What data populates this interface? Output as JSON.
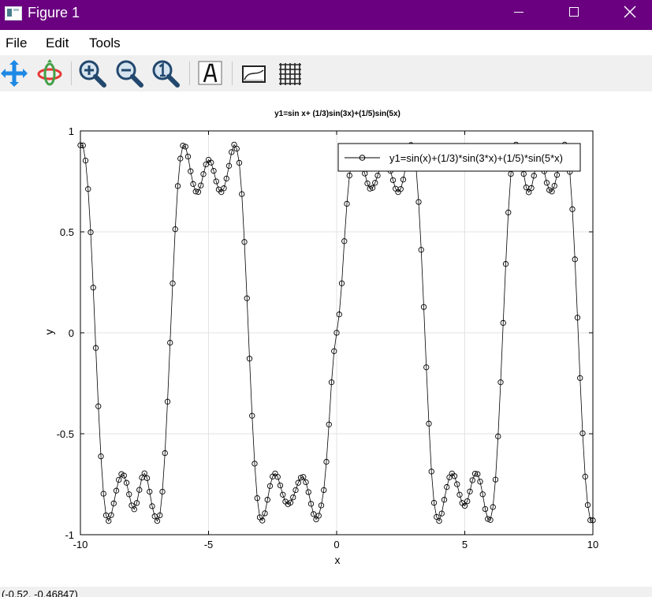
{
  "window": {
    "title": "Figure 1",
    "icon": "figure-app-icon",
    "controls": {
      "minimize_icon": "minimize-icon",
      "maximize_icon": "maximize-icon",
      "close_icon": "close-icon"
    }
  },
  "menu": {
    "items": [
      "File",
      "Edit",
      "Tools"
    ]
  },
  "toolbar": {
    "tools": [
      {
        "name": "pan-tool",
        "icon": "pan-arrows-icon"
      },
      {
        "name": "rotate-tool",
        "icon": "rotate-icon"
      },
      {
        "name": "zoom-in-tool",
        "icon": "zoom-in-icon"
      },
      {
        "name": "zoom-out-tool",
        "icon": "zoom-out-icon"
      },
      {
        "name": "zoom-reset-tool",
        "icon": "zoom-one-to-one-icon"
      },
      {
        "name": "text-tool",
        "icon": "text-a-icon"
      },
      {
        "name": "axes-tool",
        "icon": "axes-box-icon"
      },
      {
        "name": "grid-tool",
        "icon": "grid-icon"
      }
    ]
  },
  "chart_data": {
    "type": "line",
    "title": "y1=sin x+ (1/3)sin(3x)+(1/5)sin(5x)",
    "xlabel": "x",
    "ylabel": "y",
    "xlim": [
      -10,
      10
    ],
    "ylim": [
      -1,
      1
    ],
    "xticks": [
      -10,
      -5,
      0,
      5,
      10
    ],
    "xtick_labels": [
      "-10",
      "-5",
      "0",
      "5",
      "10"
    ],
    "yticks": [
      -1,
      -0.5,
      0,
      0.5,
      1
    ],
    "ytick_labels": [
      "-1",
      "-0.5",
      "0",
      "0.5",
      "1"
    ],
    "grid": true,
    "legend_position": "top-right",
    "series": [
      {
        "name": "y1=sin(x)+(1/3)*sin(3*x)+(1/5)*sin(5*x)",
        "color": "#000000",
        "marker": "circle",
        "x": [
          -10.0,
          -9.9,
          -9.8,
          -9.7,
          -9.6,
          -9.5,
          -9.4,
          -9.3,
          -9.2,
          -9.1,
          -9.0,
          -8.9,
          -8.8,
          -8.7,
          -8.6,
          -8.5,
          -8.4,
          -8.3,
          -8.2,
          -8.1,
          -8.0,
          -7.9,
          -7.8,
          -7.7,
          -7.6,
          -7.5,
          -7.4,
          -7.3,
          -7.2,
          -7.1,
          -7.0,
          -6.9,
          -6.8,
          -6.7,
          -6.6,
          -6.5,
          -6.4,
          -6.3,
          -6.2,
          -6.1,
          -6.0,
          -5.9,
          -5.8,
          -5.7,
          -5.6,
          -5.5,
          -5.4,
          -5.3,
          -5.2,
          -5.1,
          -5.0,
          -4.9,
          -4.8,
          -4.7,
          -4.6,
          -4.5,
          -4.4,
          -4.3,
          -4.2,
          -4.1,
          -4.0,
          -3.9,
          -3.8,
          -3.7,
          -3.6,
          -3.5,
          -3.4,
          -3.3,
          -3.2,
          -3.1,
          -3.0,
          -2.9,
          -2.8,
          -2.7,
          -2.6,
          -2.5,
          -2.4,
          -2.3,
          -2.2,
          -2.1,
          -2.0,
          -1.9,
          -1.8,
          -1.7,
          -1.6,
          -1.5,
          -1.4,
          -1.3,
          -1.2,
          -1.1,
          -1.0,
          -0.9,
          -0.8,
          -0.7,
          -0.6,
          -0.5,
          -0.4,
          -0.3,
          -0.2,
          -0.1,
          0.0,
          0.1,
          0.2,
          0.3,
          0.4,
          0.5,
          0.6,
          0.7,
          0.8,
          0.9,
          1.0,
          1.1,
          1.2,
          1.3,
          1.4,
          1.5,
          1.6,
          1.7,
          1.8,
          1.9,
          2.0,
          2.1,
          2.2,
          2.3,
          2.4,
          2.5,
          2.6,
          2.7,
          2.8,
          2.9,
          3.0,
          3.1,
          3.2,
          3.3,
          3.4,
          3.5,
          3.6,
          3.7,
          3.8,
          3.9,
          4.0,
          4.1,
          4.2,
          4.3,
          4.4,
          4.5,
          4.6,
          4.7,
          4.8,
          4.9,
          5.0,
          5.1,
          5.2,
          5.3,
          5.4,
          5.5,
          5.6,
          5.7,
          5.8,
          5.9,
          6.0,
          6.1,
          6.2,
          6.3,
          6.4,
          6.5,
          6.6,
          6.7,
          6.8,
          6.9,
          7.0,
          7.1,
          7.2,
          7.3,
          7.4,
          7.5,
          7.6,
          7.7,
          7.8,
          7.9,
          8.0,
          8.1,
          8.2,
          8.3,
          8.4,
          8.5,
          8.6,
          8.7,
          8.8,
          8.9,
          9.0,
          9.1,
          9.2,
          9.3,
          9.4,
          9.5,
          9.6,
          9.7,
          9.8,
          9.9,
          10.0
        ],
        "y": [
          0.929,
          0.928,
          0.853,
          0.712,
          0.498,
          0.224,
          -0.075,
          -0.364,
          -0.612,
          -0.797,
          -0.904,
          -0.932,
          -0.903,
          -0.845,
          -0.782,
          -0.728,
          -0.7,
          -0.707,
          -0.743,
          -0.8,
          -0.855,
          -0.874,
          -0.843,
          -0.778,
          -0.717,
          -0.696,
          -0.72,
          -0.787,
          -0.859,
          -0.909,
          -0.932,
          -0.904,
          -0.787,
          -0.596,
          -0.341,
          -0.049,
          0.245,
          0.513,
          0.727,
          0.863,
          0.927,
          0.922,
          0.873,
          0.8,
          0.737,
          0.7,
          0.698,
          0.73,
          0.786,
          0.834,
          0.857,
          0.843,
          0.802,
          0.75,
          0.71,
          0.697,
          0.716,
          0.764,
          0.827,
          0.895,
          0.932,
          0.912,
          0.842,
          0.687,
          0.45,
          0.171,
          -0.128,
          -0.411,
          -0.648,
          -0.819,
          -0.914,
          -0.93,
          -0.894,
          -0.827,
          -0.759,
          -0.712,
          -0.697,
          -0.714,
          -0.756,
          -0.802,
          -0.836,
          -0.849,
          -0.841,
          -0.815,
          -0.779,
          -0.743,
          -0.718,
          -0.714,
          -0.74,
          -0.789,
          -0.847,
          -0.898,
          -0.924,
          -0.906,
          -0.855,
          -0.779,
          -0.639,
          -0.454,
          -0.245,
          -0.091,
          0.0,
          0.091,
          0.245,
          0.454,
          0.639,
          0.779,
          0.855,
          0.906,
          0.924,
          0.898,
          0.847,
          0.789,
          0.74,
          0.714,
          0.718,
          0.743,
          0.779,
          0.815,
          0.841,
          0.849,
          0.836,
          0.802,
          0.756,
          0.714,
          0.697,
          0.712,
          0.759,
          0.827,
          0.894,
          0.93,
          0.914,
          0.819,
          0.648,
          0.411,
          0.128,
          -0.171,
          -0.45,
          -0.687,
          -0.842,
          -0.912,
          -0.932,
          -0.895,
          -0.827,
          -0.764,
          -0.716,
          -0.697,
          -0.71,
          -0.75,
          -0.802,
          -0.843,
          -0.857,
          -0.834,
          -0.786,
          -0.73,
          -0.698,
          -0.7,
          -0.737,
          -0.8,
          -0.873,
          -0.922,
          -0.927,
          -0.863,
          -0.727,
          -0.513,
          -0.245,
          0.049,
          0.341,
          0.596,
          0.787,
          0.904,
          0.932,
          0.909,
          0.859,
          0.787,
          0.72,
          0.696,
          0.717,
          0.778,
          0.843,
          0.874,
          0.855,
          0.8,
          0.743,
          0.707,
          0.7,
          0.728,
          0.782,
          0.845,
          0.903,
          0.932,
          0.904,
          0.797,
          0.612,
          0.364,
          0.075,
          -0.224,
          -0.498,
          -0.712,
          -0.853,
          -0.928,
          -0.929
        ]
      }
    ]
  },
  "status": {
    "text": "(-0.52, -0.46847)"
  }
}
